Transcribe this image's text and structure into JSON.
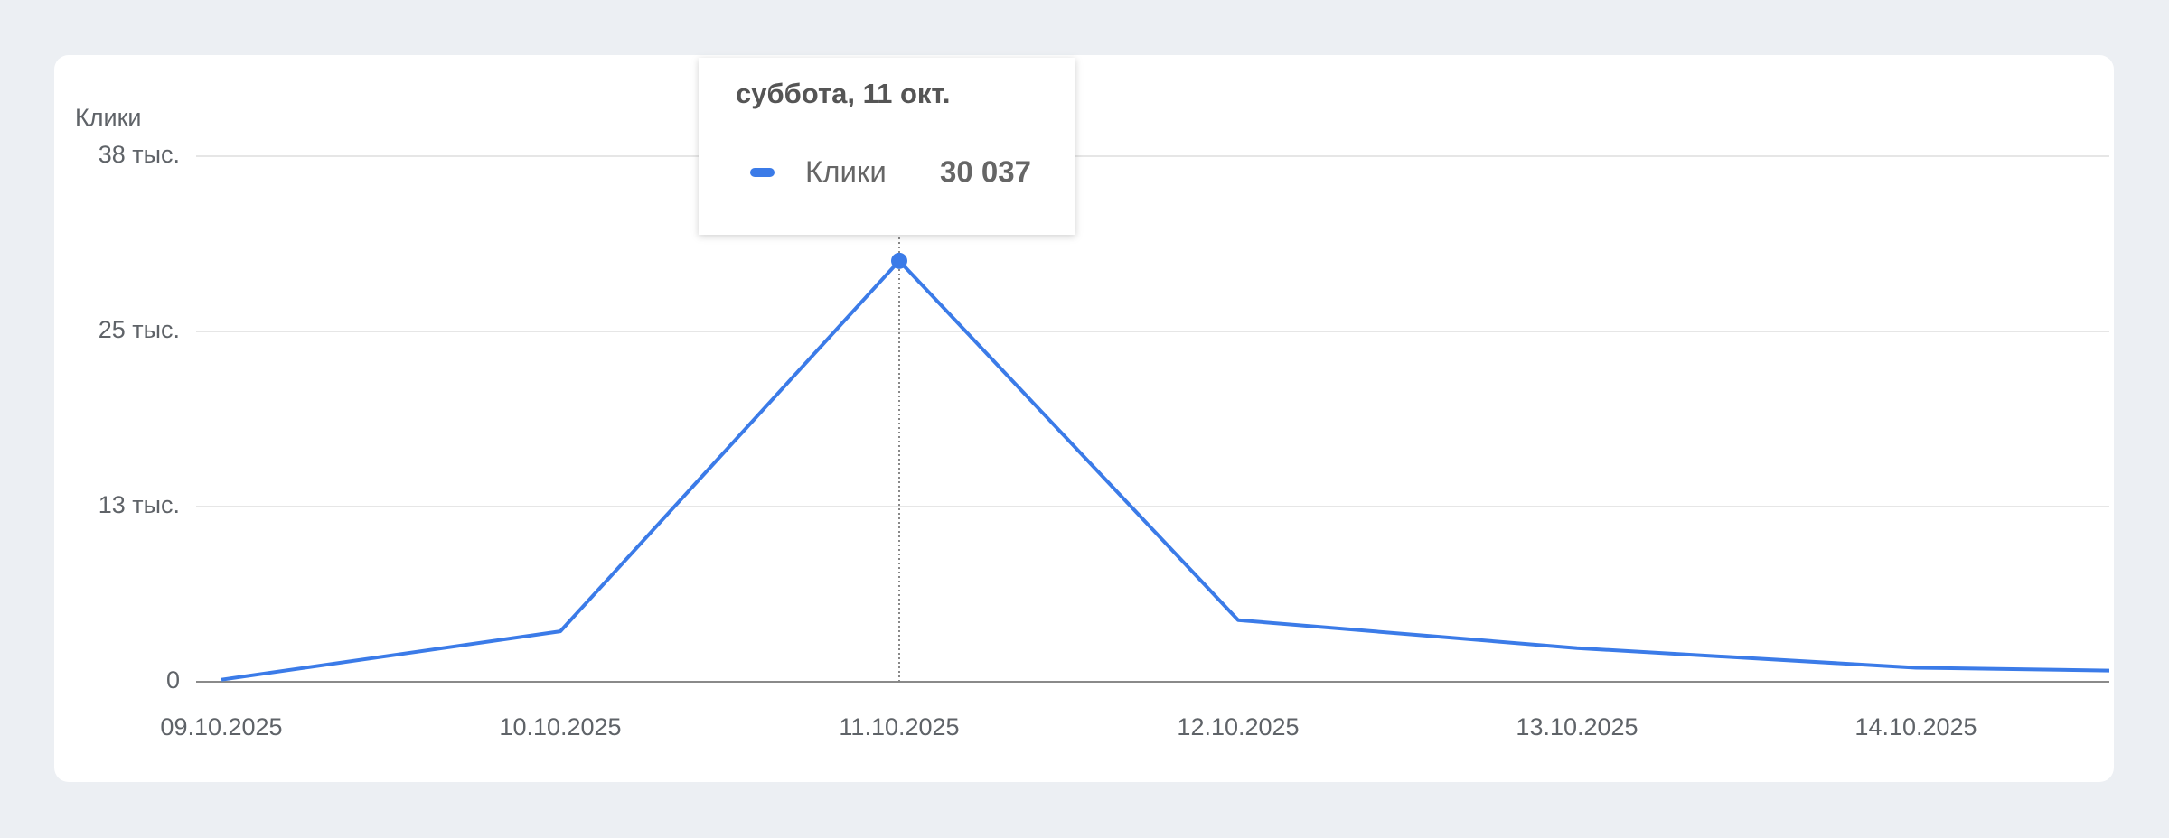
{
  "chart_data": {
    "type": "line",
    "y_label": "Клики",
    "categories": [
      "09.10.2025",
      "10.10.2025",
      "11.10.2025",
      "12.10.2025",
      "13.10.2025",
      "14.10.2025",
      null
    ],
    "series": [
      {
        "name": "Клики",
        "color": "#3b7be8",
        "values": [
          150,
          3600,
          30037,
          4400,
          2400,
          1000,
          650
        ],
        "value_labels": [
          null,
          null,
          "30 037",
          null,
          null,
          null,
          null
        ]
      }
    ],
    "ylim": [
      0,
      37500
    ],
    "yticks": [
      0,
      {
        "value": 12500,
        "label": "13 тыс."
      },
      {
        "value": 25000,
        "label": "25 тыс."
      },
      {
        "value": 37500,
        "label": "38 тыс."
      }
    ],
    "grid": true,
    "tooltip": {
      "title": "суббота, 11 окт."
    }
  }
}
